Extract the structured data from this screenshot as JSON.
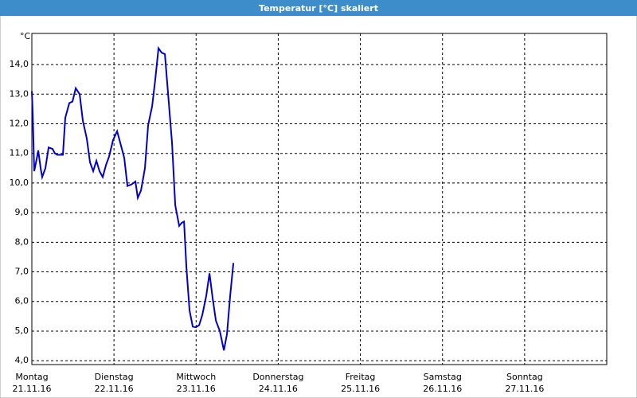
{
  "chart_data": {
    "type": "line",
    "title": "Temperatur [°C] skaliert",
    "y_unit": "°C",
    "x": [
      0,
      0.01,
      0.029,
      0.058,
      0.078,
      0.107,
      0.126,
      0.165,
      0.204,
      0.252,
      0.281,
      0.31,
      0.378,
      0.407,
      0.456,
      0.495,
      0.534,
      0.582,
      0.621,
      0.669,
      0.708,
      0.747,
      0.786,
      0.824,
      0.863,
      0.902,
      0.941,
      0.989,
      1.038,
      1.077,
      1.125,
      1.164,
      1.212,
      1.261,
      1.29,
      1.329,
      1.377,
      1.416,
      1.465,
      1.503,
      1.542,
      1.581,
      1.62,
      1.668,
      1.707,
      1.746,
      1.794,
      1.823,
      1.853,
      1.882,
      1.92,
      1.959,
      1.998,
      2.037,
      2.076,
      2.124,
      2.163,
      2.202,
      2.241,
      2.289,
      2.338,
      2.376,
      2.415,
      2.454
    ],
    "series": [
      {
        "color": "#0000cc",
        "values": [
          13.1,
          12.4,
          10.4,
          10.8,
          11.1,
          10.5,
          10.2,
          10.5,
          11.2,
          11.15,
          11.0,
          10.95,
          10.95,
          12.2,
          12.7,
          12.75,
          13.2,
          13.0,
          12.1,
          11.5,
          10.7,
          10.4,
          10.75,
          10.4,
          10.2,
          10.6,
          10.9,
          11.45,
          11.75,
          11.35,
          10.85,
          9.9,
          9.95,
          10.05,
          9.5,
          9.75,
          10.5,
          11.95,
          12.6,
          13.5,
          14.55,
          14.4,
          14.35,
          12.7,
          11.35,
          9.25,
          8.55,
          8.65,
          8.7,
          7.15,
          5.7,
          5.15,
          5.13,
          5.2,
          5.55,
          6.2,
          6.95,
          6.1,
          5.35,
          5.0,
          4.35,
          4.9,
          6.2,
          7.3
        ]
      }
    ],
    "xlim": [
      0,
      7
    ],
    "xticks": [
      {
        "value": 0,
        "label": "Montag"
      },
      {
        "value": 1,
        "label": "Dienstag"
      },
      {
        "value": 2,
        "label": "Mittwoch"
      },
      {
        "value": 3,
        "label": "Donnerstag"
      },
      {
        "value": 4,
        "label": "Freitag"
      },
      {
        "value": 5,
        "label": "Samstag"
      },
      {
        "value": 6,
        "label": "Sonntag"
      }
    ],
    "xtick_dates": [
      "21.11.16",
      "22.11.16",
      "23.11.16",
      "24.11.16",
      "25.11.16",
      "26.11.16",
      "27.11.16"
    ],
    "ylim": [
      3.87,
      15.05
    ],
    "yticks": [
      {
        "value": 4,
        "label": "4,0"
      },
      {
        "value": 5,
        "label": "5,0"
      },
      {
        "value": 6,
        "label": "6,0"
      },
      {
        "value": 7,
        "label": "7,0"
      },
      {
        "value": 8,
        "label": "8,0"
      },
      {
        "value": 9,
        "label": "9,0"
      },
      {
        "value": 10,
        "label": "10,0"
      },
      {
        "value": 11,
        "label": "11,0"
      },
      {
        "value": 12,
        "label": "12,0"
      },
      {
        "value": 13,
        "label": "13,0"
      },
      {
        "value": 14,
        "label": "14,0"
      }
    ],
    "grid": true
  }
}
